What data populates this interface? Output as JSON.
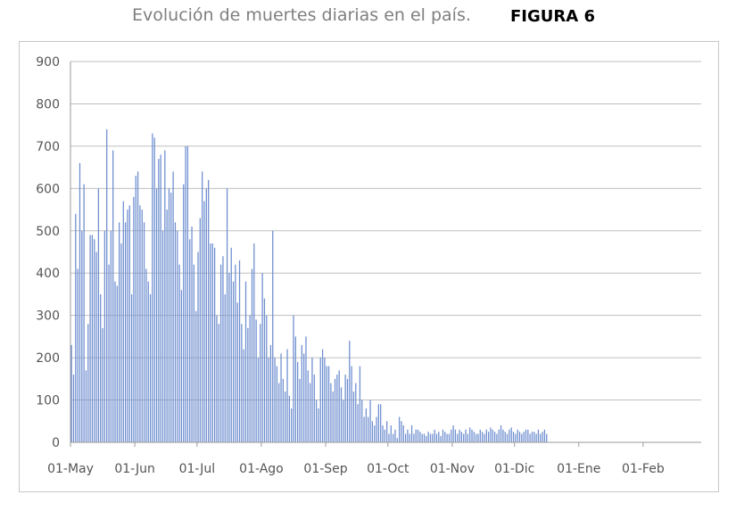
{
  "header": {
    "title": "Evolución de muertes diarias en el país.",
    "figure_label": "FIGURA 6"
  },
  "chart_data": {
    "type": "bar",
    "title": "Evolución de muertes diarias en el país.",
    "xlabel": "",
    "ylabel": "",
    "ylim": [
      0,
      900
    ],
    "yticks": [
      0,
      100,
      200,
      300,
      400,
      500,
      600,
      700,
      800,
      900
    ],
    "grid": true,
    "legend": "none",
    "bar_color": "#6f8fd0",
    "grid_color": "#bfbfbf",
    "xtick_labels": [
      "01-May",
      "01-Jun",
      "01-Jul",
      "01-Ago",
      "01-Sep",
      "01-Oct",
      "01-Nov",
      "01-Dic",
      "01-Ene",
      "01-Feb"
    ],
    "xtick_day_index": [
      0,
      31,
      61,
      92,
      123,
      153,
      184,
      214,
      245,
      276
    ],
    "x_range_days": [
      0,
      304
    ],
    "start_label": "01-May",
    "values": [
      230,
      160,
      540,
      410,
      660,
      500,
      610,
      170,
      280,
      490,
      490,
      480,
      450,
      600,
      350,
      270,
      500,
      740,
      420,
      500,
      690,
      380,
      370,
      520,
      470,
      570,
      520,
      550,
      560,
      350,
      580,
      630,
      640,
      560,
      550,
      520,
      410,
      380,
      350,
      730,
      720,
      600,
      670,
      680,
      500,
      690,
      550,
      600,
      590,
      640,
      520,
      500,
      420,
      360,
      610,
      700,
      700,
      480,
      510,
      420,
      310,
      450,
      530,
      640,
      570,
      600,
      620,
      470,
      470,
      460,
      300,
      280,
      420,
      440,
      350,
      600,
      400,
      460,
      380,
      420,
      330,
      430,
      280,
      220,
      380,
      270,
      300,
      410,
      470,
      290,
      200,
      280,
      400,
      340,
      300,
      200,
      230,
      500,
      200,
      180,
      140,
      210,
      150,
      120,
      220,
      110,
      80,
      300,
      250,
      190,
      150,
      230,
      210,
      250,
      170,
      140,
      200,
      160,
      100,
      80,
      200,
      220,
      200,
      180,
      180,
      140,
      120,
      150,
      160,
      170,
      130,
      100,
      160,
      150,
      240,
      180,
      120,
      140,
      90,
      180,
      100,
      60,
      80,
      60,
      100,
      50,
      40,
      60,
      90,
      90,
      40,
      30,
      50,
      20,
      40,
      20,
      30,
      10,
      60,
      50,
      40,
      20,
      30,
      20,
      40,
      20,
      30,
      30,
      25,
      20,
      20,
      15,
      25,
      20,
      20,
      30,
      20,
      25,
      15,
      30,
      25,
      20,
      20,
      30,
      40,
      30,
      20,
      30,
      25,
      20,
      30,
      20,
      35,
      30,
      25,
      20,
      20,
      30,
      25,
      20,
      30,
      25,
      35,
      30,
      25,
      20,
      30,
      40,
      30,
      25,
      20,
      30,
      35,
      25,
      20,
      30,
      25,
      20,
      25,
      30,
      30,
      20,
      25,
      25,
      20,
      30,
      20,
      25,
      30,
      20
    ]
  }
}
